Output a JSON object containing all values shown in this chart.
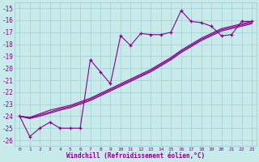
{
  "xlabel": "Windchill (Refroidissement éolien,°C)",
  "bg_color": "#c8eaea",
  "grid_color": "#9dcfcf",
  "line_color": "#880088",
  "x_values": [
    0,
    1,
    2,
    3,
    4,
    5,
    6,
    7,
    8,
    9,
    10,
    11,
    12,
    13,
    14,
    15,
    16,
    17,
    18,
    19,
    20,
    21,
    22,
    23
  ],
  "zigzag_y": [
    -24.0,
    -25.7,
    -25.0,
    -24.5,
    -25.0,
    -25.0,
    -25.0,
    -19.3,
    -20.3,
    -21.3,
    -17.3,
    -18.1,
    -17.1,
    -17.2,
    -17.2,
    -17.0,
    -15.2,
    -16.1,
    -16.2,
    -16.5,
    -17.3,
    -17.2,
    -16.1,
    -16.1
  ],
  "line2_y": [
    -24.0,
    -24.1,
    -23.8,
    -23.5,
    -23.3,
    -23.1,
    -22.8,
    -22.5,
    -22.1,
    -21.7,
    -21.3,
    -20.9,
    -20.5,
    -20.1,
    -19.6,
    -19.1,
    -18.5,
    -18.0,
    -17.5,
    -17.1,
    -16.7,
    -16.5,
    -16.3,
    -16.1
  ],
  "line3_y": [
    -24.0,
    -24.15,
    -23.9,
    -23.65,
    -23.4,
    -23.2,
    -22.9,
    -22.6,
    -22.2,
    -21.8,
    -21.4,
    -21.0,
    -20.6,
    -20.2,
    -19.7,
    -19.2,
    -18.6,
    -18.1,
    -17.6,
    -17.2,
    -16.8,
    -16.6,
    -16.4,
    -16.2
  ],
  "line4_y": [
    -24.0,
    -24.2,
    -24.0,
    -23.75,
    -23.5,
    -23.3,
    -23.0,
    -22.7,
    -22.3,
    -21.9,
    -21.5,
    -21.1,
    -20.7,
    -20.3,
    -19.8,
    -19.3,
    -18.7,
    -18.2,
    -17.7,
    -17.3,
    -16.9,
    -16.7,
    -16.5,
    -16.3
  ],
  "ylim": [
    -26.5,
    -14.5
  ],
  "xlim": [
    -0.5,
    23.5
  ],
  "yticks": [
    -15,
    -16,
    -17,
    -18,
    -19,
    -20,
    -21,
    -22,
    -23,
    -24,
    -25,
    -26
  ]
}
